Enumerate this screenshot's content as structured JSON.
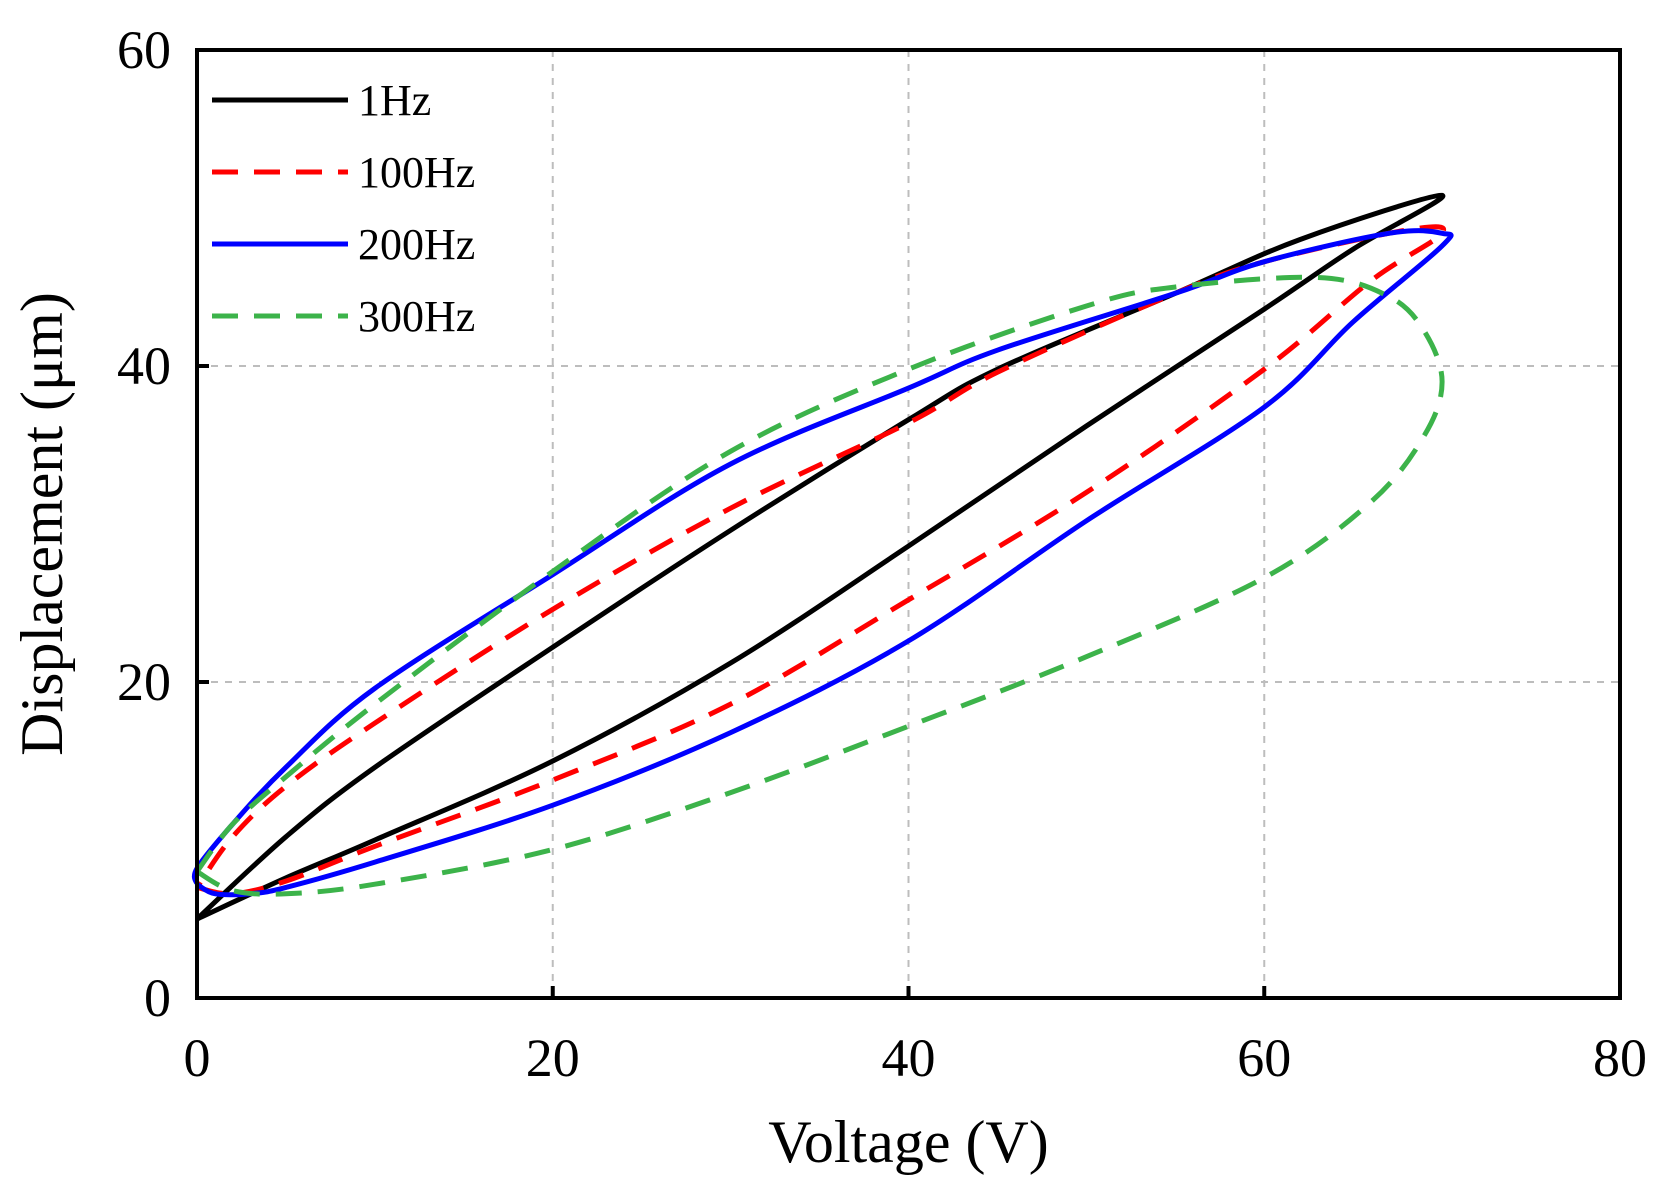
{
  "chart_data": {
    "type": "line",
    "title": "",
    "xlabel": "Voltage (V)",
    "ylabel": "Displacement (μm)",
    "xlim": [
      0,
      80
    ],
    "ylim": [
      0,
      60
    ],
    "xticks": [
      0,
      20,
      40,
      60,
      80
    ],
    "yticks": [
      0,
      20,
      40,
      60
    ],
    "xtick_labels": [
      "0",
      "20",
      "40",
      "60",
      "80"
    ],
    "ytick_labels": [
      "0",
      "20",
      "40",
      "60"
    ],
    "grid": true,
    "legend_position": "top-left",
    "series": [
      {
        "name": "1Hz",
        "color": "#000000",
        "dash": "solid",
        "points": [
          [
            0,
            5
          ],
          [
            5,
            7.6
          ],
          [
            10,
            10
          ],
          [
            20,
            15
          ],
          [
            30,
            21.2
          ],
          [
            40,
            28.6
          ],
          [
            50,
            36.2
          ],
          [
            60,
            43.6
          ],
          [
            65,
            47.4
          ],
          [
            70,
            50.8
          ],
          [
            62,
            48
          ],
          [
            55,
            44.6
          ],
          [
            45,
            39.8
          ],
          [
            40,
            36.6
          ],
          [
            30,
            29.6
          ],
          [
            20,
            22.2
          ],
          [
            10,
            14.6
          ],
          [
            5,
            10.2
          ],
          [
            0,
            5
          ]
        ]
      },
      {
        "name": "100Hz",
        "color": "#ff0000",
        "dash": "dashed",
        "points": [
          [
            0,
            7
          ],
          [
            2,
            6.6
          ],
          [
            5,
            7.4
          ],
          [
            10,
            9.6
          ],
          [
            20,
            13.8
          ],
          [
            30,
            18.6
          ],
          [
            40,
            25.2
          ],
          [
            50,
            32
          ],
          [
            60,
            39.8
          ],
          [
            66,
            45.4
          ],
          [
            70,
            48.4
          ],
          [
            68,
            48.6
          ],
          [
            60,
            46.6
          ],
          [
            55,
            44.6
          ],
          [
            45,
            39.6
          ],
          [
            40,
            36.4
          ],
          [
            30,
            31
          ],
          [
            20,
            24.6
          ],
          [
            10,
            17.4
          ],
          [
            5,
            13.4
          ],
          [
            2,
            10.2
          ],
          [
            0,
            7
          ]
        ]
      },
      {
        "name": "200Hz",
        "color": "#0000ff",
        "dash": "solid",
        "points": [
          [
            0,
            7.2
          ],
          [
            1,
            6.6
          ],
          [
            3,
            6.6
          ],
          [
            5,
            7
          ],
          [
            10,
            8.6
          ],
          [
            20,
            12.2
          ],
          [
            30,
            16.8
          ],
          [
            40,
            22.6
          ],
          [
            50,
            30.2
          ],
          [
            60,
            37.4
          ],
          [
            65,
            42.8
          ],
          [
            70,
            47.6
          ],
          [
            70,
            48.4
          ],
          [
            67,
            48.4
          ],
          [
            60,
            46.6
          ],
          [
            55,
            44.6
          ],
          [
            45,
            41
          ],
          [
            40,
            38.6
          ],
          [
            30,
            33.8
          ],
          [
            20,
            26.8
          ],
          [
            10,
            19.6
          ],
          [
            5,
            14.6
          ],
          [
            2,
            11
          ],
          [
            0,
            8.2
          ],
          [
            0,
            7.2
          ]
        ]
      },
      {
        "name": "300Hz",
        "color": "#3cb34a",
        "dash": "dashed",
        "points": [
          [
            0,
            8
          ],
          [
            2,
            6.8
          ],
          [
            5,
            6.6
          ],
          [
            10,
            7.2
          ],
          [
            20,
            9.4
          ],
          [
            30,
            13
          ],
          [
            40,
            17.2
          ],
          [
            50,
            21.6
          ],
          [
            60,
            26.6
          ],
          [
            66,
            31.4
          ],
          [
            69,
            35.6
          ],
          [
            70,
            39
          ],
          [
            69,
            42.2
          ],
          [
            67,
            44.4
          ],
          [
            63,
            45.6
          ],
          [
            55,
            45
          ],
          [
            50,
            43.8
          ],
          [
            40,
            39.8
          ],
          [
            30,
            34.6
          ],
          [
            20,
            27
          ],
          [
            10,
            18.6
          ],
          [
            5,
            14
          ],
          [
            2,
            11
          ],
          [
            0,
            8
          ]
        ]
      }
    ]
  }
}
